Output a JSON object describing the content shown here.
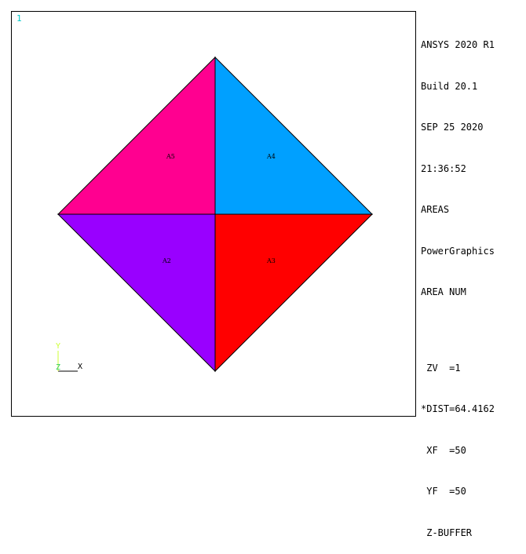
{
  "window": {
    "number": "1"
  },
  "info_panel": {
    "header_lines": [
      "ANSYS 2020 R1",
      "Build 20.1",
      "SEP 25 2020",
      "21:36:52",
      "AREAS",
      "PowerGraphics",
      "AREA NUM"
    ],
    "view_lines": [
      " ZV  =1",
      "*DIST=64.4162",
      " XF  =50",
      " YF  =50",
      " Z-BUFFER"
    ]
  },
  "areas": [
    {
      "label": "A5",
      "quadrant": "upper-left",
      "color": "#ff0090"
    },
    {
      "label": "A4",
      "quadrant": "upper-right",
      "color": "#00a0ff"
    },
    {
      "label": "A2",
      "quadrant": "lower-left",
      "color": "#9900ff"
    },
    {
      "label": "A3",
      "quadrant": "lower-right",
      "color": "#ff0000"
    }
  ],
  "triad": {
    "x_label": "X",
    "y_label": "Y",
    "z_label": "Z",
    "y_color": "#ccff33",
    "z_color": "#33cc66"
  }
}
